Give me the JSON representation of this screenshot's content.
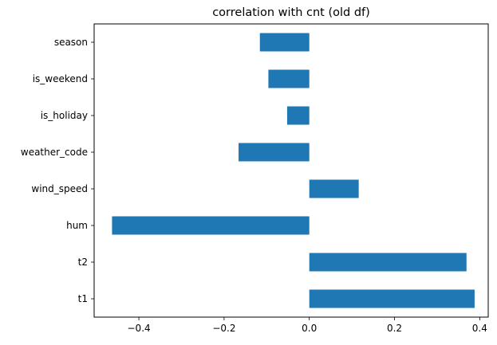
{
  "chart_data": {
    "type": "bar",
    "orientation": "horizontal",
    "title": "correlation with cnt (old df)",
    "xlabel": "",
    "ylabel": "",
    "categories": [
      "t1",
      "t2",
      "hum",
      "wind_speed",
      "weather_code",
      "is_holiday",
      "is_weekend",
      "season"
    ],
    "values": [
      0.388,
      0.369,
      -0.463,
      0.116,
      -0.166,
      -0.052,
      -0.096,
      -0.116
    ],
    "xlim": [
      -0.505,
      0.42
    ],
    "xticks": [
      -0.4,
      -0.2,
      0.0,
      0.2,
      0.4
    ],
    "xtick_labels": [
      "−0.4",
      "−0.2",
      "0.0",
      "0.2",
      "0.4"
    ],
    "grid": false,
    "bar_color": "#1f77b4"
  }
}
